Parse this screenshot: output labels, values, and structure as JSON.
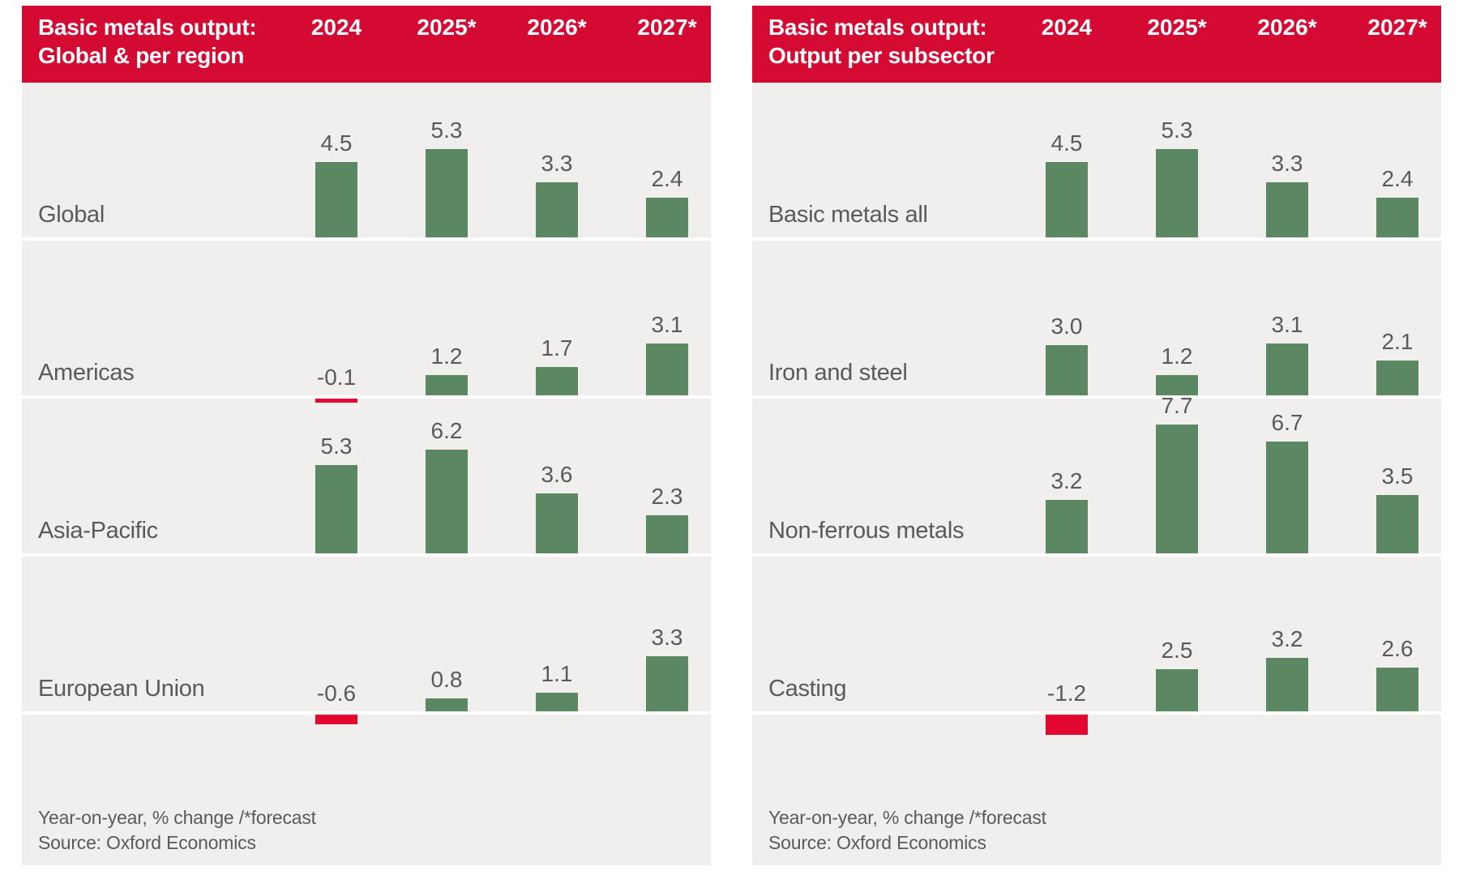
{
  "colors": {
    "header_bg": "#d40a33",
    "positive_bar": "#5b8862",
    "negative_bar": "#e30630",
    "panel_bg": "#f1efed",
    "text_gray": "#5a5a5c",
    "header_text": "#ffffff",
    "page_bg": "#ffffff"
  },
  "chart_data": [
    {
      "type": "bar",
      "title_lines": [
        "Basic metals output:",
        "Global & per region"
      ],
      "categories": [
        "2024",
        "2025*",
        "2026*",
        "2027*"
      ],
      "rows": [
        {
          "label": "Global",
          "values": [
            4.5,
            5.3,
            3.3,
            2.4
          ]
        },
        {
          "label": "Americas",
          "values": [
            -0.1,
            1.2,
            1.7,
            3.1
          ]
        },
        {
          "label": "Asia-Pacific",
          "values": [
            5.3,
            6.2,
            3.6,
            2.3
          ]
        },
        {
          "label": "European Union",
          "values": [
            -0.6,
            0.8,
            1.1,
            3.3
          ]
        }
      ],
      "value_format": "one_decimal",
      "negative_style": "red bar hanging below baseline",
      "footnote": "Year-on-year, % change /*forecast",
      "source": "Source: Oxford Economics"
    },
    {
      "type": "bar",
      "title_lines": [
        "Basic metals output:",
        "Output per subsector"
      ],
      "categories": [
        "2024",
        "2025*",
        "2026*",
        "2027*"
      ],
      "rows": [
        {
          "label": "Basic metals all",
          "values": [
            4.5,
            5.3,
            3.3,
            2.4
          ]
        },
        {
          "label": "Iron and steel",
          "values": [
            3.0,
            1.2,
            3.1,
            2.1
          ]
        },
        {
          "label": "Non-ferrous metals",
          "values": [
            3.2,
            7.7,
            6.7,
            3.5
          ]
        },
        {
          "label": "Casting",
          "values": [
            -1.2,
            2.5,
            3.2,
            2.6
          ]
        }
      ],
      "value_format": "one_decimal",
      "negative_style": "red bar hanging below baseline",
      "footnote": "Year-on-year, % change /*forecast",
      "source": "Source: Oxford Economics"
    }
  ]
}
